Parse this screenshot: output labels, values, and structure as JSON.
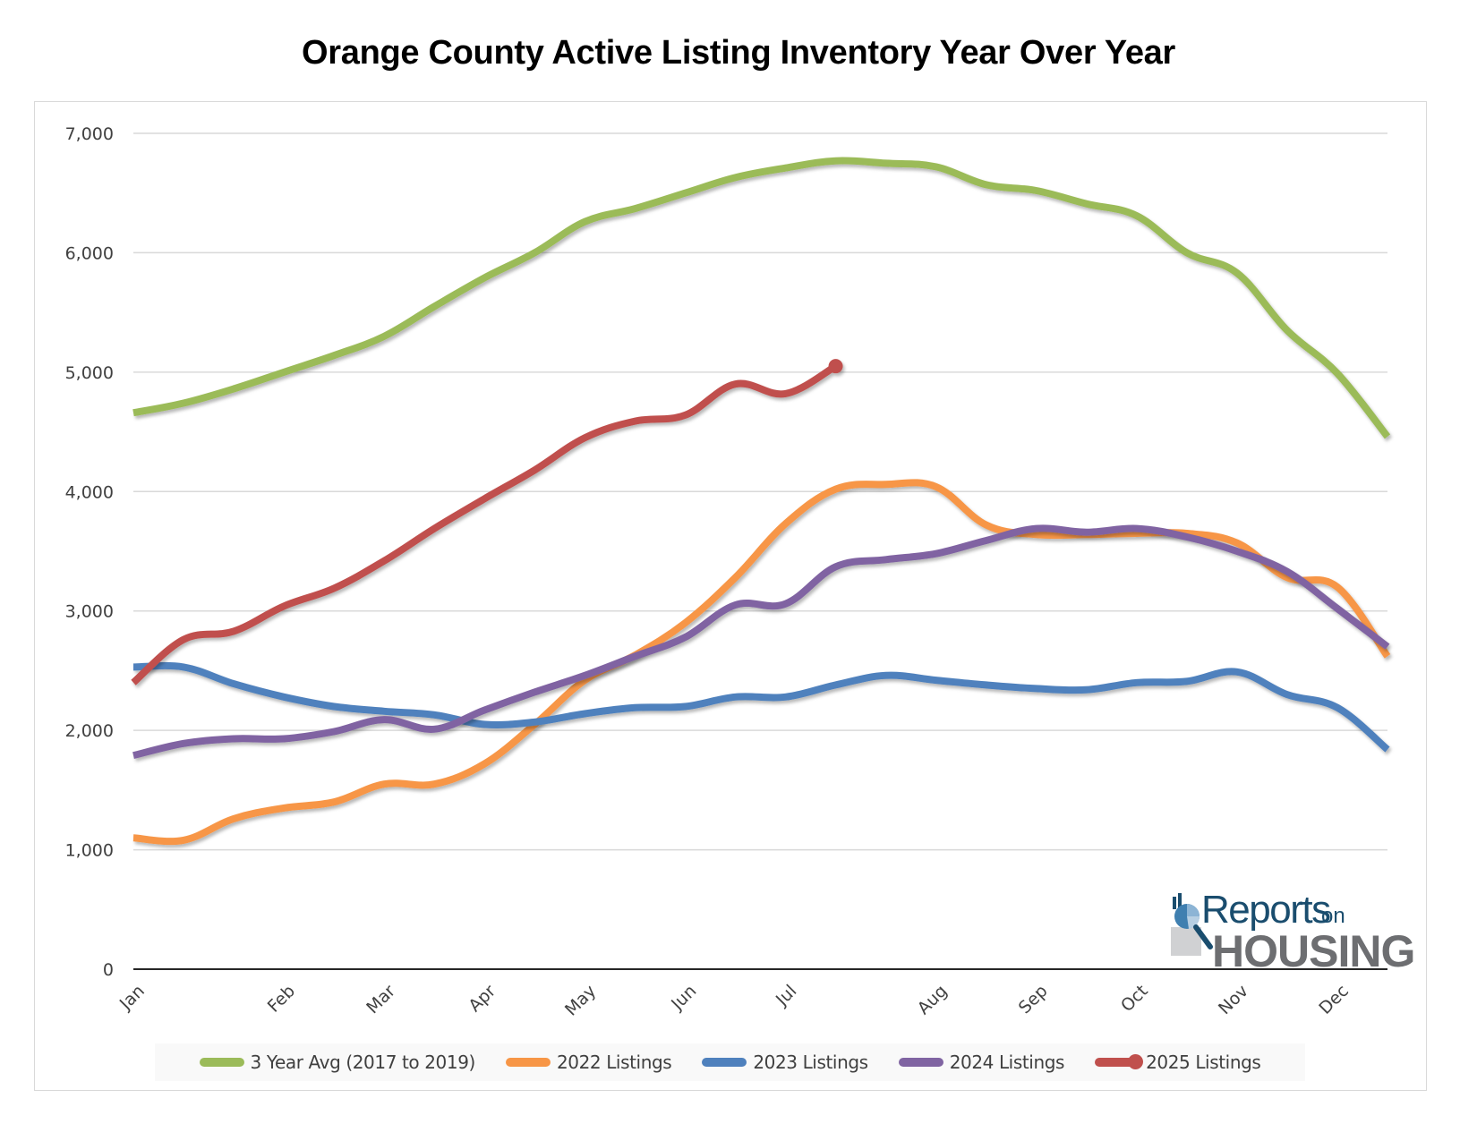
{
  "chart_data": {
    "type": "line",
    "title": "Orange County Active Listing Inventory Year Over Year",
    "xlabel": "",
    "ylabel": "",
    "ylim": [
      0,
      7000
    ],
    "yticks": [
      0,
      1000,
      2000,
      3000,
      4000,
      5000,
      6000,
      7000
    ],
    "ytick_labels": [
      "0",
      "1,000",
      "2,000",
      "3,000",
      "4,000",
      "5,000",
      "6,000",
      "7,000"
    ],
    "grid": true,
    "smooth": true,
    "point_count": 26,
    "x_tick_labels": [
      {
        "index": 0,
        "label": "Jan"
      },
      {
        "index": 3,
        "label": "Feb"
      },
      {
        "index": 5,
        "label": "Mar"
      },
      {
        "index": 7,
        "label": "Apr"
      },
      {
        "index": 9,
        "label": "May"
      },
      {
        "index": 11,
        "label": "Jun"
      },
      {
        "index": 13,
        "label": "Jul"
      },
      {
        "index": 16,
        "label": "Aug"
      },
      {
        "index": 18,
        "label": "Sep"
      },
      {
        "index": 20,
        "label": "Oct"
      },
      {
        "index": 22,
        "label": "Nov"
      },
      {
        "index": 24,
        "label": "Dec"
      }
    ],
    "legend_position": "bottom",
    "series": [
      {
        "name": "3 Year Avg (2017 to 2019)",
        "color": "#9BBB59",
        "marker_end": false,
        "values": [
          4660,
          4740,
          4860,
          5000,
          5140,
          5300,
          5550,
          5790,
          6000,
          6260,
          6370,
          6500,
          6630,
          6710,
          6770,
          6750,
          6720,
          6570,
          6520,
          6410,
          6310,
          6000,
          5830,
          5350,
          4990,
          4460
        ]
      },
      {
        "name": "2022 Listings",
        "color": "#F79646",
        "marker_end": false,
        "values": [
          1100,
          1080,
          1260,
          1350,
          1400,
          1550,
          1550,
          1720,
          2050,
          2420,
          2630,
          2900,
          3280,
          3730,
          4020,
          4060,
          4040,
          3720,
          3640,
          3640,
          3650,
          3650,
          3570,
          3280,
          3200,
          2620
        ]
      },
      {
        "name": "2023 Listings",
        "color": "#4F81BD",
        "marker_end": false,
        "values": [
          2530,
          2530,
          2390,
          2280,
          2200,
          2160,
          2130,
          2050,
          2070,
          2140,
          2190,
          2200,
          2280,
          2280,
          2380,
          2460,
          2420,
          2380,
          2350,
          2340,
          2400,
          2410,
          2490,
          2300,
          2190,
          1840
        ]
      },
      {
        "name": "2024 Listings",
        "color": "#8064A2",
        "marker_end": false,
        "values": [
          1790,
          1890,
          1930,
          1930,
          1990,
          2090,
          2010,
          2170,
          2320,
          2460,
          2620,
          2780,
          3050,
          3060,
          3370,
          3430,
          3480,
          3590,
          3690,
          3660,
          3690,
          3620,
          3500,
          3330,
          3020,
          2700
        ]
      },
      {
        "name": "2025 Listings",
        "color": "#C0504D",
        "marker_end": true,
        "values": [
          2400,
          2760,
          2830,
          3040,
          3190,
          3420,
          3690,
          3940,
          4180,
          4450,
          4590,
          4640,
          4900,
          4820,
          5050
        ]
      }
    ]
  },
  "logo": {
    "word1": "Reports",
    "word2": "on",
    "word3": "HOUSING",
    "colors": {
      "primary": "#1a4d6e",
      "secondary": "#6d6e71"
    }
  }
}
